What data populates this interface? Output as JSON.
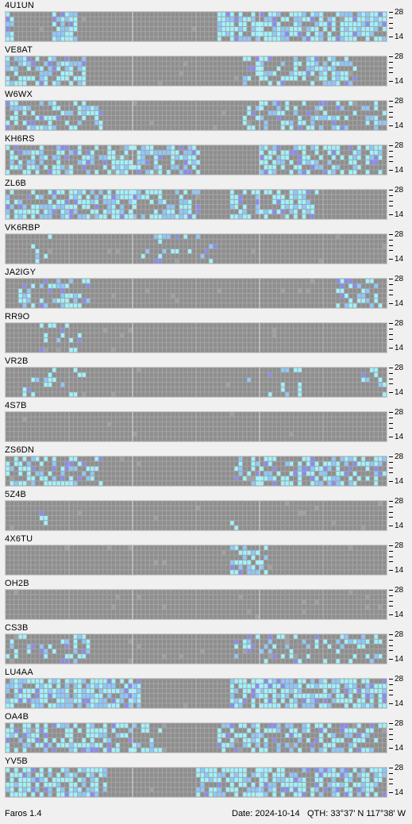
{
  "app": {
    "name": "Faros 1.4"
  },
  "status": {
    "date_label": "Date: 2024-10-14",
    "qth_label": "QTH: 33°37' N  117°38' W"
  },
  "band_labels": {
    "upper": "28",
    "lower": "14"
  },
  "colors": {
    "panel_bg": "#7b7b7b",
    "empty_cell": "#8e8e8e",
    "grid_line": "#a5a5a5",
    "hour_line": "#e0e0e0",
    "signal_strong": "#9ef3ff",
    "signal_medium": "#8cc8ff",
    "signal_weak": "#8a8af0",
    "signal_faint": "#a0a0a0"
  },
  "beacons": [
    {
      "call": "4U1UN",
      "activity": [
        [
          0.0,
          0.02
        ],
        [
          0.12,
          0.18
        ],
        [
          0.55,
          1.0
        ]
      ],
      "density": 0.75
    },
    {
      "call": "VE8AT",
      "activity": [
        [
          0.0,
          0.2
        ],
        [
          0.62,
          0.92
        ]
      ],
      "density": 0.6
    },
    {
      "call": "W6WX",
      "activity": [
        [
          0.0,
          0.25
        ],
        [
          0.62,
          1.0
        ]
      ],
      "density": 0.45
    },
    {
      "call": "KH6RS",
      "activity": [
        [
          0.0,
          0.5
        ],
        [
          0.66,
          0.98
        ]
      ],
      "density": 0.55
    },
    {
      "call": "ZL6B",
      "activity": [
        [
          0.0,
          0.5
        ],
        [
          0.58,
          0.82
        ]
      ],
      "density": 0.6
    },
    {
      "call": "VK6RBP",
      "activity": [
        [
          0.05,
          0.12
        ],
        [
          0.35,
          0.55
        ]
      ],
      "density": 0.2
    },
    {
      "call": "JA2IGY",
      "activity": [
        [
          0.03,
          0.22
        ],
        [
          0.86,
          0.98
        ]
      ],
      "density": 0.5
    },
    {
      "call": "RR9O",
      "activity": [
        [
          0.08,
          0.2
        ]
      ],
      "density": 0.1
    },
    {
      "call": "VR2B",
      "activity": [
        [
          0.04,
          0.2
        ],
        [
          0.62,
          0.82
        ],
        [
          0.92,
          0.99
        ]
      ],
      "density": 0.2
    },
    {
      "call": "4S7B",
      "activity": [],
      "density": 0.0
    },
    {
      "call": "ZS6DN",
      "activity": [
        [
          0.0,
          0.25
        ],
        [
          0.6,
          1.0
        ]
      ],
      "density": 0.45
    },
    {
      "call": "5Z4B",
      "activity": [
        [
          0.07,
          0.1
        ],
        [
          0.58,
          0.62
        ]
      ],
      "density": 0.15
    },
    {
      "call": "4X6TU",
      "activity": [
        [
          0.58,
          0.68
        ]
      ],
      "density": 0.5
    },
    {
      "call": "OH2B",
      "activity": [],
      "density": 0.0
    },
    {
      "call": "CS3B",
      "activity": [
        [
          0.0,
          0.22
        ],
        [
          0.6,
          0.98
        ]
      ],
      "density": 0.3
    },
    {
      "call": "LU4AA",
      "activity": [
        [
          0.0,
          0.35
        ],
        [
          0.58,
          1.0
        ]
      ],
      "density": 0.75
    },
    {
      "call": "OA4B",
      "activity": [
        [
          0.0,
          0.4
        ],
        [
          0.55,
          1.0
        ]
      ],
      "density": 0.55
    },
    {
      "call": "YV5B",
      "activity": [
        [
          0.0,
          0.26
        ],
        [
          0.5,
          1.0
        ]
      ],
      "density": 0.7
    }
  ]
}
